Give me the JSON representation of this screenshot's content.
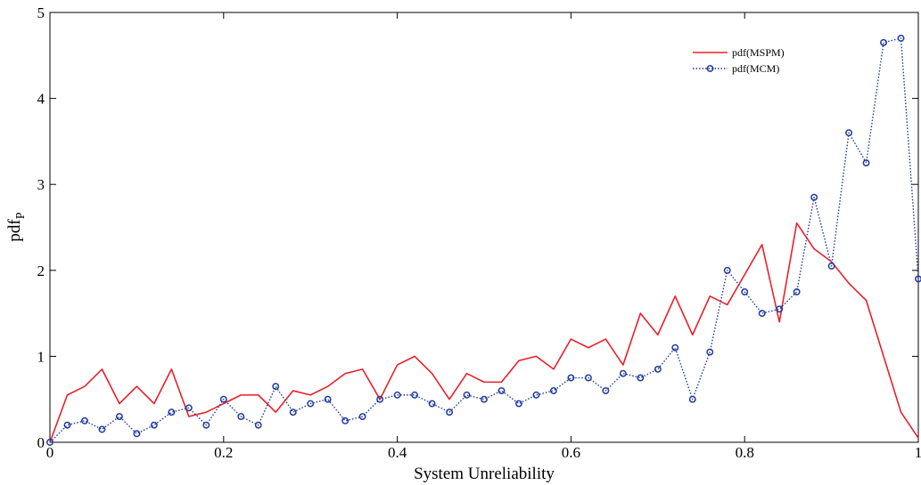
{
  "chart_data": {
    "type": "line",
    "xlabel": "System Unreliability",
    "ylabel": "pdf",
    "ylabel_sub": "P",
    "xlim": [
      0,
      1
    ],
    "ylim": [
      0,
      5
    ],
    "xticks": [
      0,
      0.2,
      0.4,
      0.6,
      0.8,
      1
    ],
    "xtick_labels": [
      "0",
      "0.2",
      "0.4",
      "0.6",
      "0.8",
      "1"
    ],
    "yticks": [
      0,
      1,
      2,
      3,
      4,
      5
    ],
    "ytick_labels": [
      "0",
      "1",
      "2",
      "3",
      "4",
      "5"
    ],
    "grid": false,
    "legend_position": "top-right",
    "x": [
      0,
      0.02,
      0.04,
      0.06,
      0.08,
      0.1,
      0.12,
      0.14,
      0.16,
      0.18,
      0.2,
      0.22,
      0.24,
      0.26,
      0.28,
      0.3,
      0.32,
      0.34,
      0.36,
      0.38,
      0.4,
      0.42,
      0.44,
      0.46,
      0.48,
      0.5,
      0.52,
      0.54,
      0.56,
      0.58,
      0.6,
      0.62,
      0.64,
      0.66,
      0.68,
      0.7,
      0.72,
      0.74,
      0.76,
      0.78,
      0.8,
      0.82,
      0.84,
      0.86,
      0.88,
      0.9,
      0.92,
      0.94,
      0.96,
      0.98,
      1.0
    ],
    "series": [
      {
        "name": "pdf(MSPM)",
        "color": "#e8202a",
        "style": "solid",
        "marker": "none",
        "values": [
          0,
          0.55,
          0.65,
          0.85,
          0.45,
          0.65,
          0.45,
          0.85,
          0.3,
          0.35,
          0.45,
          0.55,
          0.55,
          0.35,
          0.6,
          0.55,
          0.65,
          0.8,
          0.85,
          0.5,
          0.9,
          1.0,
          0.8,
          0.5,
          0.8,
          0.7,
          0.7,
          0.95,
          1.0,
          0.85,
          1.2,
          1.1,
          1.2,
          0.9,
          1.5,
          1.25,
          1.7,
          1.25,
          1.7,
          1.6,
          1.95,
          2.3,
          1.4,
          2.55,
          2.25,
          2.1,
          1.85,
          1.65,
          1.0,
          0.35,
          0.05
        ]
      },
      {
        "name": "pdf(MCM)",
        "color": "#1f3a9c",
        "style": "dotted",
        "marker": "circle",
        "values": [
          0,
          0.2,
          0.25,
          0.15,
          0.3,
          0.1,
          0.2,
          0.35,
          0.4,
          0.2,
          0.5,
          0.3,
          0.2,
          0.65,
          0.35,
          0.45,
          0.5,
          0.25,
          0.3,
          0.5,
          0.55,
          0.55,
          0.45,
          0.35,
          0.55,
          0.5,
          0.6,
          0.45,
          0.55,
          0.6,
          0.75,
          0.75,
          0.6,
          0.8,
          0.75,
          0.85,
          1.1,
          0.5,
          1.05,
          2.0,
          1.75,
          1.5,
          1.55,
          1.75,
          2.85,
          2.05,
          3.6,
          3.25,
          4.65,
          4.7,
          1.9
        ]
      }
    ]
  }
}
